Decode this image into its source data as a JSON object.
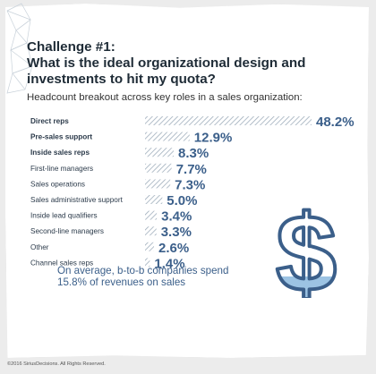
{
  "title_line1": "Challenge #1:",
  "title_line2": "What is the ideal organizational design and",
  "title_line3": "investments to hit my quota?",
  "subtitle": "Headcount breakout across key roles in a sales organization:",
  "note_line1": "On average, b-to-b companies spend",
  "note_line2": "15.8% of revenues on sales",
  "copyright": "©2016 SiriusDecisions. All Rights Reserved.",
  "colors": {
    "label": "#2b3a4a",
    "value": "#3b5f8a",
    "bar_stripe": "#9aa9b8",
    "dollar": "#3b5f8a",
    "dollar_fill": "#9cc3e3"
  },
  "icons": [
    "dollar-sign-icon",
    "geometric-polygon-decoration"
  ],
  "chart_data": {
    "type": "bar",
    "orientation": "horizontal",
    "categories": [
      "Direct reps",
      "Pre-sales support",
      "Inside sales reps",
      "First-line managers",
      "Sales operations",
      "Sales administrative support",
      "Inside lead qualifiers",
      "Second-line managers",
      "Other",
      "Channel sales reps"
    ],
    "bold_categories": [
      "Direct reps",
      "Pre-sales support",
      "Inside sales reps"
    ],
    "values": [
      48.2,
      12.9,
      8.3,
      7.7,
      7.3,
      5.0,
      3.4,
      3.3,
      2.6,
      1.4
    ],
    "value_labels": [
      "48.2%",
      "12.9%",
      "8.3%",
      "7.7%",
      "7.3%",
      "5.0%",
      "3.4%",
      "3.3%",
      "2.6%",
      "1.4%"
    ],
    "xlim": [
      0,
      48.2
    ],
    "grid": false
  }
}
